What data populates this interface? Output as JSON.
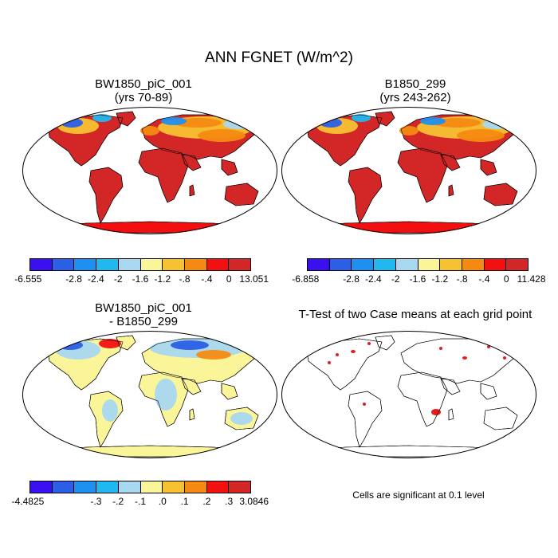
{
  "title": "ANN FGNET (W/m^2)",
  "panels": [
    {
      "title1": "BW1850_piC_001",
      "title2": "(yrs 70-89)"
    },
    {
      "title1": "B1850_299",
      "title2": "(yrs 243-262)"
    },
    {
      "title1": "BW1850_piC_001",
      "title2": "- B1850_299"
    },
    {
      "title1": "T-Test of two Case means at each grid point",
      "title2": ""
    }
  ],
  "colorbars": [
    {
      "colors": [
        "#3a10f0",
        "#2a5fe6",
        "#1e90f0",
        "#20b8ee",
        "#a8d8f0",
        "#fbf59a",
        "#f7c232",
        "#f58a12",
        "#f21010",
        "#d32626"
      ],
      "labels": [
        "-6.555",
        "-2.8",
        "-2.4",
        "-2",
        "-1.6",
        "-1.2",
        "-.8",
        "-.4",
        "0",
        "13.051"
      ]
    },
    {
      "colors": [
        "#3a10f0",
        "#2a5fe6",
        "#1e90f0",
        "#20b8ee",
        "#a8d8f0",
        "#fbf59a",
        "#f7c232",
        "#f58a12",
        "#f21010",
        "#d32626"
      ],
      "labels": [
        "-6.858",
        "-2.8",
        "-2.4",
        "-2",
        "-1.6",
        "-1.2",
        "-.8",
        "-.4",
        "0",
        "11.428"
      ]
    },
    {
      "colors": [
        "#3a10f0",
        "#2a5fe6",
        "#1e90f0",
        "#20b8ee",
        "#a8d8f0",
        "#fbf59a",
        "#f7c232",
        "#f58a12",
        "#f21010",
        "#d32626"
      ],
      "labels": [
        "-4.4825",
        "-.3",
        "-.2",
        "-.1",
        ".0",
        ".1",
        ".2",
        ".3",
        "3.0846"
      ]
    }
  ],
  "note": "Cells are significant at 0.1 level",
  "colors": {
    "land_warm": "#d32626",
    "land_hot": "#f21010",
    "diff_fill": "#fbf59a",
    "diff_light": "#a8d8f0",
    "sig": "#e81010"
  }
}
